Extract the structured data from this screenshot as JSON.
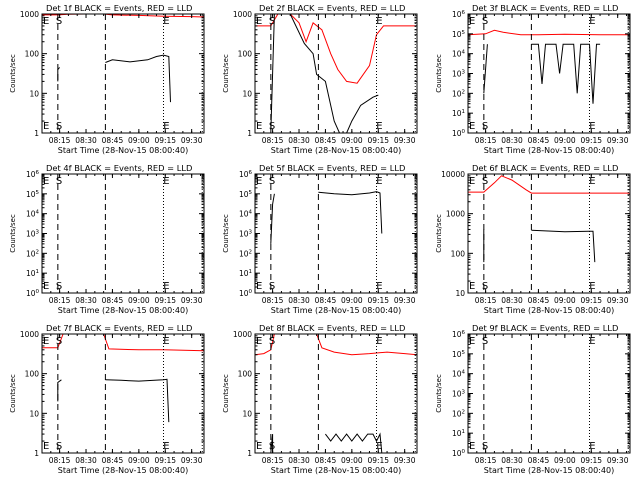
{
  "colors": {
    "events": "#000000",
    "lld": "#ff0000",
    "axis": "#000000",
    "background": "#ffffff"
  },
  "figure": {
    "xlabel": "Start Time (28-Nov-15 08:00:40)",
    "ylabel": "Counts/sec",
    "x_tick_labels": [
      "08:15",
      "08:30",
      "08:45",
      "09:00",
      "09:15",
      "09:30"
    ],
    "marker_S": "S",
    "marker_E": "E"
  },
  "chart_data": [
    {
      "type": "line",
      "panel": 1,
      "title": "Det 1f BLACK = Events, RED = LLD",
      "scale": "log",
      "ylim": [
        1,
        1000
      ],
      "y_tick_labels": [
        "1",
        "10",
        "100",
        "1000"
      ],
      "xlim": [
        "08:05",
        "09:37"
      ],
      "dashed_lines": [
        "08:14",
        "08:41"
      ],
      "dotted_lines": [
        "09:14",
        "09:36"
      ],
      "label_S_at": "08:14",
      "label_E_at": "09:15",
      "series": [
        {
          "color": "lld",
          "segments": [
            [
              [
                "08:05",
                950
              ],
              [
                "08:14",
                950
              ],
              [
                "08:20",
                980
              ],
              [
                "08:30",
                1000
              ],
              [
                "08:40",
                1000
              ],
              [
                "08:45",
                950
              ],
              [
                "09:00",
                920
              ],
              [
                "09:14",
                880
              ],
              [
                "09:30",
                860
              ],
              [
                "09:37",
                840
              ]
            ]
          ]
        },
        {
          "color": "events",
          "segments": [
            [
              [
                "08:14",
                20
              ],
              [
                "08:14",
                40
              ],
              [
                "08:15",
                45
              ]
            ],
            [
              [
                "08:41",
                60
              ],
              [
                "08:45",
                70
              ],
              [
                "08:55",
                62
              ],
              [
                "09:05",
                70
              ],
              [
                "09:10",
                85
              ],
              [
                "09:14",
                92
              ],
              [
                "09:17",
                85
              ],
              [
                "09:18",
                6
              ]
            ]
          ]
        }
      ]
    },
    {
      "type": "line",
      "panel": 2,
      "title": "Det 2f BLACK = Events, RED = LLD",
      "scale": "log",
      "ylim": [
        1,
        1000
      ],
      "y_tick_labels": [
        "1",
        "10",
        "100",
        "1000"
      ],
      "xlim": [
        "08:05",
        "09:37"
      ],
      "dashed_lines": [
        "08:14",
        "08:41"
      ],
      "dotted_lines": [
        "09:14",
        "09:36"
      ],
      "label_S_at": "08:14",
      "label_E_at": "09:15",
      "series": [
        {
          "color": "lld",
          "segments": [
            [
              [
                "08:05",
                500
              ],
              [
                "08:14",
                500
              ],
              [
                "08:18",
                1000
              ],
              [
                "08:25",
                1000
              ],
              [
                "08:30",
                600
              ],
              [
                "08:34",
                200
              ],
              [
                "08:38",
                600
              ],
              [
                "08:43",
                400
              ],
              [
                "08:48",
                100
              ],
              [
                "08:52",
                40
              ],
              [
                "08:57",
                20
              ],
              [
                "09:03",
                18
              ],
              [
                "09:10",
                50
              ],
              [
                "09:14",
                300
              ],
              [
                "09:18",
                500
              ],
              [
                "09:37",
                500
              ]
            ]
          ]
        },
        {
          "color": "events",
          "segments": [
            [
              [
                "08:14",
                1
              ],
              [
                "08:16",
                1000
              ],
              [
                "08:25",
                1000
              ],
              [
                "08:33",
                180
              ],
              [
                "08:38",
                100
              ],
              [
                "08:40",
                30
              ],
              [
                "08:45",
                20
              ],
              [
                "08:50",
                2
              ],
              [
                "08:53",
                1
              ]
            ],
            [
              [
                "08:57",
                1
              ],
              [
                "09:00",
                2
              ],
              [
                "09:05",
                5
              ],
              [
                "09:12",
                8
              ],
              [
                "09:15",
                9
              ]
            ]
          ]
        }
      ]
    },
    {
      "type": "line",
      "panel": 3,
      "title": "Det 3f BLACK = Events, RED = LLD",
      "scale": "log",
      "ylim": [
        1,
        1000000
      ],
      "y_tick_labels": [
        "10^0",
        "10^1",
        "10^2",
        "10^3",
        "10^4",
        "10^5",
        "10^6"
      ],
      "xlim": [
        "08:05",
        "09:37"
      ],
      "dashed_lines": [
        "08:14",
        "08:41"
      ],
      "dotted_lines": [
        "09:14",
        "09:36"
      ],
      "label_S_at": "08:14",
      "label_E_at": "09:15",
      "series": [
        {
          "color": "lld",
          "segments": [
            [
              [
                "08:05",
                90000
              ],
              [
                "08:15",
                100000
              ],
              [
                "08:20",
                150000
              ],
              [
                "08:25",
                120000
              ],
              [
                "08:35",
                90000
              ],
              [
                "08:45",
                90000
              ],
              [
                "09:00",
                95000
              ],
              [
                "09:20",
                90000
              ],
              [
                "09:37",
                90000
              ]
            ]
          ]
        },
        {
          "color": "events",
          "segments": [
            [
              [
                "08:14",
                100
              ],
              [
                "08:16",
                30000
              ]
            ],
            [
              [
                "08:41",
                30000
              ],
              [
                "08:45",
                30000
              ],
              [
                "08:47",
                300
              ],
              [
                "08:49",
                30000
              ],
              [
                "08:55",
                30000
              ],
              [
                "08:57",
                1000
              ],
              [
                "08:59",
                30000
              ],
              [
                "09:05",
                30000
              ],
              [
                "09:07",
                100
              ],
              [
                "09:09",
                30000
              ],
              [
                "09:14",
                30000
              ],
              [
                "09:16",
                30
              ],
              [
                "09:18",
                30000
              ],
              [
                "09:20",
                30000
              ]
            ]
          ]
        }
      ]
    },
    {
      "type": "line",
      "panel": 4,
      "title": "Det 4f BLACK = Events, RED = LLD",
      "scale": "log",
      "ylim": [
        1,
        1000000
      ],
      "y_tick_labels": [
        "10^0",
        "10^1",
        "10^2",
        "10^3",
        "10^4",
        "10^5",
        "10^6"
      ],
      "xlim": [
        "08:05",
        "09:37"
      ],
      "dashed_lines": [
        "08:14",
        "08:41"
      ],
      "dotted_lines": [
        "09:14",
        "09:36"
      ],
      "label_S_at": "08:14",
      "label_E_at": "09:15",
      "series": []
    },
    {
      "type": "line",
      "panel": 5,
      "title": "Det 5f BLACK = Events, RED = LLD",
      "scale": "log",
      "ylim": [
        1,
        1000000
      ],
      "y_tick_labels": [
        "10^0",
        "10^1",
        "10^2",
        "10^3",
        "10^4",
        "10^5",
        "10^6"
      ],
      "xlim": [
        "08:05",
        "09:37"
      ],
      "dashed_lines": [
        "08:14",
        "08:41"
      ],
      "dotted_lines": [
        "09:14",
        "09:36"
      ],
      "label_S_at": "08:14",
      "label_E_at": "09:15",
      "series": [
        {
          "color": "events",
          "segments": [
            [
              [
                "08:14",
                300
              ],
              [
                "08:15",
                30000
              ],
              [
                "08:16",
                100000
              ]
            ],
            [
              [
                "08:41",
                120000
              ],
              [
                "08:50",
                100000
              ],
              [
                "09:00",
                90000
              ],
              [
                "09:10",
                110000
              ],
              [
                "09:14",
                130000
              ],
              [
                "09:16",
                110000
              ],
              [
                "09:17",
                1000
              ]
            ]
          ]
        }
      ]
    },
    {
      "type": "line",
      "panel": 6,
      "title": "Det 6f BLACK = Events, RED = LLD",
      "scale": "log",
      "ylim": [
        10,
        10000
      ],
      "y_tick_labels": [
        "10",
        "100",
        "1000",
        "10000"
      ],
      "xlim": [
        "08:05",
        "09:37"
      ],
      "dashed_lines": [
        "08:14",
        "08:41"
      ],
      "dotted_lines": [
        "09:14",
        "09:36"
      ],
      "label_S_at": "08:14",
      "label_E_at": "09:15",
      "series": [
        {
          "color": "lld",
          "segments": [
            [
              [
                "08:05",
                3500
              ],
              [
                "08:14",
                3500
              ],
              [
                "08:20",
                6000
              ],
              [
                "08:24",
                9000
              ],
              [
                "08:30",
                7000
              ],
              [
                "08:38",
                4000
              ],
              [
                "08:41",
                3300
              ],
              [
                "09:00",
                3300
              ],
              [
                "09:37",
                3300
              ]
            ]
          ]
        },
        {
          "color": "events",
          "segments": [
            [
              [
                "08:14",
                60
              ],
              [
                "08:14",
                400
              ]
            ],
            [
              [
                "08:41",
                380
              ],
              [
                "09:00",
                350
              ],
              [
                "09:14",
                360
              ],
              [
                "09:16",
                360
              ],
              [
                "09:17",
                60
              ]
            ]
          ]
        }
      ]
    },
    {
      "type": "line",
      "panel": 7,
      "title": "Det 7f BLACK = Events, RED = LLD",
      "scale": "log",
      "ylim": [
        1,
        1000
      ],
      "y_tick_labels": [
        "1",
        "10",
        "100",
        "1000"
      ],
      "xlim": [
        "08:05",
        "09:37"
      ],
      "dashed_lines": [
        "08:14",
        "08:41"
      ],
      "dotted_lines": [
        "09:14",
        "09:36"
      ],
      "label_S_at": "08:14",
      "label_E_at": "09:15",
      "series": [
        {
          "color": "lld",
          "segments": [
            [
              [
                "08:05",
                450
              ],
              [
                "08:14",
                450
              ],
              [
                "08:17",
                1000
              ],
              [
                "08:40",
                1000
              ],
              [
                "08:43",
                420
              ],
              [
                "09:00",
                400
              ],
              [
                "09:14",
                400
              ],
              [
                "09:37",
                380
              ]
            ]
          ]
        },
        {
          "color": "events",
          "segments": [
            [
              [
                "08:14",
                20
              ],
              [
                "08:14",
                60
              ],
              [
                "08:16",
                70
              ]
            ],
            [
              [
                "08:41",
                70
              ],
              [
                "08:50",
                68
              ],
              [
                "09:00",
                65
              ],
              [
                "09:14",
                70
              ],
              [
                "09:16",
                72
              ],
              [
                "09:17",
                6
              ]
            ]
          ]
        }
      ]
    },
    {
      "type": "line",
      "panel": 8,
      "title": "Det 8f BLACK = Events, RED = LLD",
      "scale": "log",
      "ylim": [
        1,
        1000
      ],
      "y_tick_labels": [
        "1",
        "10",
        "100",
        "1000"
      ],
      "xlim": [
        "08:05",
        "09:37"
      ],
      "dashed_lines": [
        "08:14",
        "08:41"
      ],
      "dotted_lines": [
        "09:14",
        "09:36"
      ],
      "label_S_at": "08:14",
      "label_E_at": "09:15",
      "series": [
        {
          "color": "lld",
          "segments": [
            [
              [
                "08:05",
                300
              ],
              [
                "08:10",
                320
              ],
              [
                "08:14",
                400
              ],
              [
                "08:16",
                1000
              ],
              [
                "08:40",
                1000
              ],
              [
                "08:43",
                450
              ],
              [
                "08:50",
                350
              ],
              [
                "09:00",
                300
              ],
              [
                "09:10",
                320
              ],
              [
                "09:20",
                350
              ],
              [
                "09:30",
                320
              ],
              [
                "09:37",
                300
              ]
            ]
          ]
        },
        {
          "color": "events",
          "segments": [
            [
              [
                "08:14",
                1
              ],
              [
                "08:15",
                3
              ],
              [
                "08:15",
                1
              ]
            ],
            [
              [
                "08:45",
                3
              ],
              [
                "08:48",
                2
              ],
              [
                "08:51",
                3
              ],
              [
                "08:54",
                2
              ],
              [
                "08:57",
                3
              ],
              [
                "09:00",
                2
              ],
              [
                "09:03",
                3
              ],
              [
                "09:06",
                2
              ],
              [
                "09:09",
                3
              ],
              [
                "09:12",
                3
              ],
              [
                "09:14",
                2
              ],
              [
                "09:16",
                3
              ],
              [
                "09:17",
                1
              ]
            ]
          ]
        }
      ]
    },
    {
      "type": "line",
      "panel": 9,
      "title": "Det 9f BLACK = Events, RED = LLD",
      "scale": "log",
      "ylim": [
        1,
        1000000
      ],
      "y_tick_labels": [
        "10^0",
        "10^1",
        "10^2",
        "10^3",
        "10^4",
        "10^5",
        "10^6"
      ],
      "xlim": [
        "08:05",
        "09:37"
      ],
      "dashed_lines": [
        "08:14",
        "08:41"
      ],
      "dotted_lines": [
        "09:14",
        "09:36"
      ],
      "label_S_at": "08:14",
      "label_E_at": "09:15",
      "series": []
    }
  ]
}
